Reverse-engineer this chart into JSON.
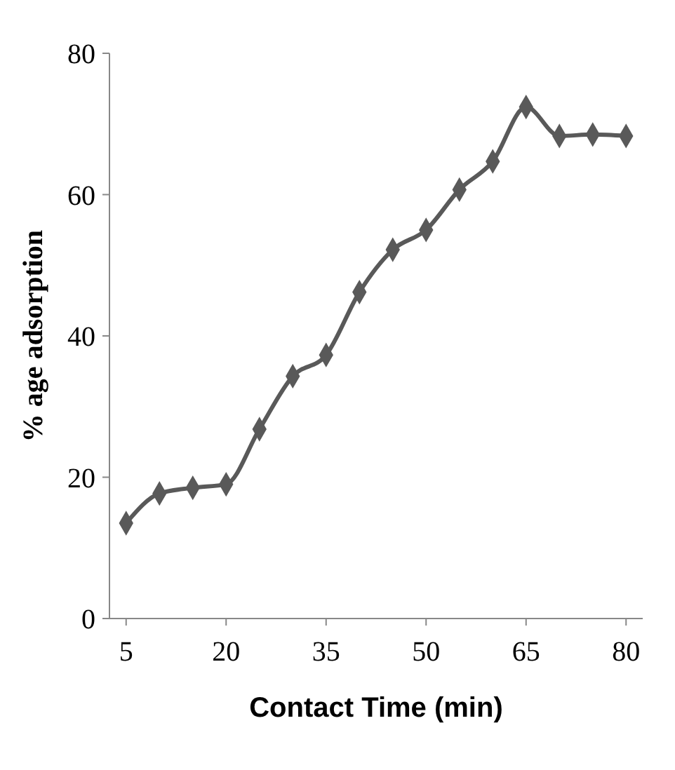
{
  "chart_data": {
    "type": "line",
    "xlabel": "Contact Time (min)",
    "ylabel": "% age adsorption",
    "x": [
      5,
      10,
      15,
      20,
      25,
      30,
      35,
      40,
      45,
      50,
      55,
      60,
      65,
      70,
      75,
      80
    ],
    "series": [
      {
        "color": "#595959",
        "values": [
          13.5,
          17.7,
          18.5,
          19,
          26.8,
          34.3,
          37.3,
          46.2,
          52.2,
          55,
          60.7,
          64.7,
          72.4,
          68.3,
          68.5,
          68.3
        ]
      }
    ],
    "xlim": [
      2.5,
      82.5
    ],
    "xticks": [
      5,
      20,
      35,
      50,
      65,
      80
    ],
    "ylim": [
      0,
      80
    ],
    "yticks": [
      0,
      20,
      40,
      60,
      80
    ],
    "grid": false,
    "marker": "diamond",
    "line_style": "solid"
  }
}
